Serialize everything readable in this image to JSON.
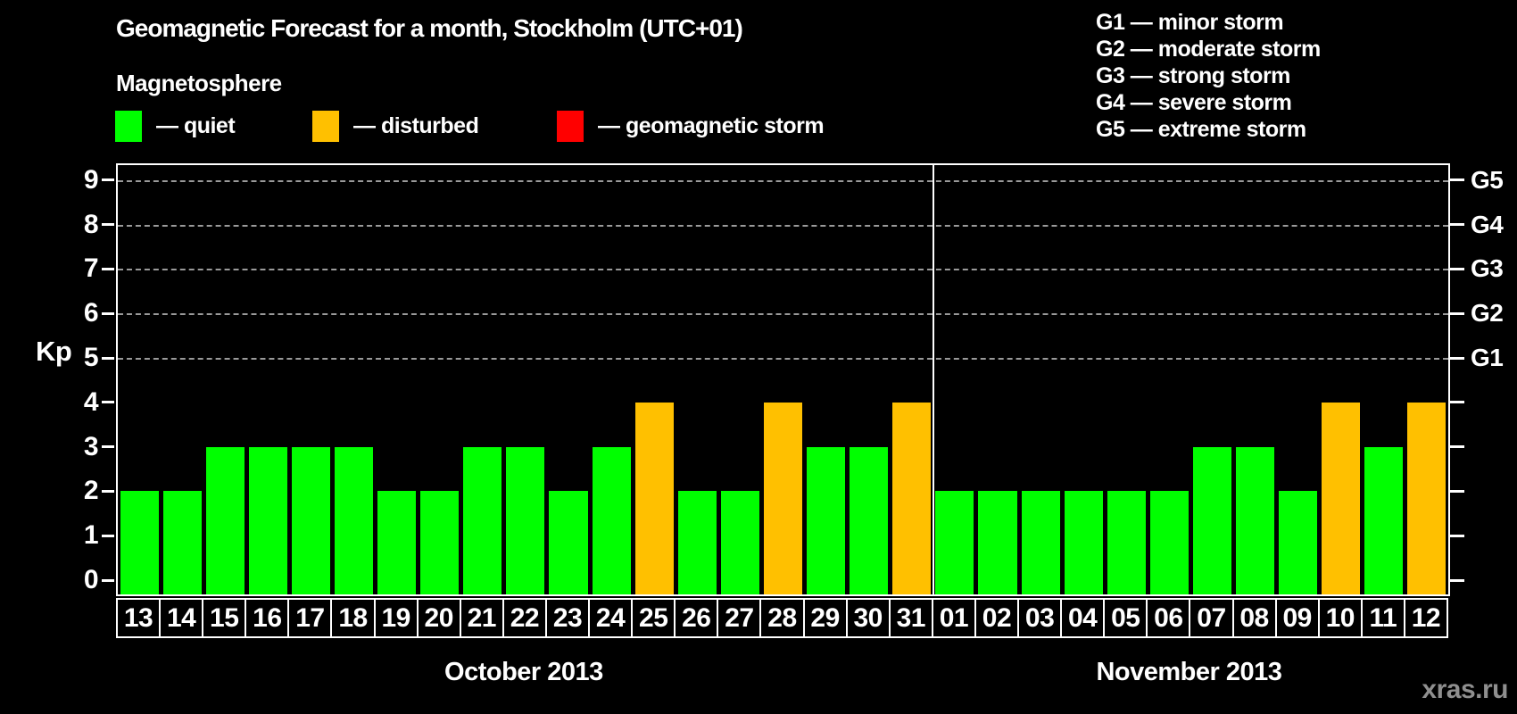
{
  "title": "Geomagnetic Forecast for a month, Stockholm (UTC+01)",
  "subtitle": "Magnetosphere",
  "legend": [
    {
      "name": "quiet",
      "label": "— quiet",
      "color": "#00ff00"
    },
    {
      "name": "disturbed",
      "label": "— disturbed",
      "color": "#ffc000"
    },
    {
      "name": "storm",
      "label": "— geomagnetic storm",
      "color": "#ff0000"
    }
  ],
  "g_scale_legend": [
    "G1 — minor storm",
    "G2 — moderate storm",
    "G3 — strong storm",
    "G4 — severe storm",
    "G5 — extreme storm"
  ],
  "watermark": "xras.ru",
  "chart_data": {
    "type": "bar",
    "title": "Geomagnetic Forecast for a month, Stockholm (UTC+01)",
    "xlabel": "",
    "ylabel": "Kp",
    "ylim": [
      0,
      9
    ],
    "y_ticks": [
      0,
      1,
      2,
      3,
      4,
      5,
      6,
      7,
      8,
      9
    ],
    "gridlines_at_kp": [
      5,
      6,
      7,
      8,
      9
    ],
    "grid": "dashed horizontal at Kp 5-9 only",
    "legend_position": "top",
    "right_axis_labels": [
      {
        "label": "G1",
        "kp": 5
      },
      {
        "label": "G2",
        "kp": 6
      },
      {
        "label": "G3",
        "kp": 7
      },
      {
        "label": "G4",
        "kp": 8
      },
      {
        "label": "G5",
        "kp": 9
      }
    ],
    "status_colors": {
      "quiet": "#00ff00",
      "disturbed": "#ffc000",
      "storm": "#ff0000"
    },
    "months": [
      {
        "label": "October 2013",
        "days": [
          "13",
          "14",
          "15",
          "16",
          "17",
          "18",
          "19",
          "20",
          "21",
          "22",
          "23",
          "24",
          "25",
          "26",
          "27",
          "28",
          "29",
          "30",
          "31"
        ],
        "values": [
          2,
          2,
          3,
          3,
          3,
          3,
          2,
          2,
          3,
          3,
          2,
          3,
          4,
          2,
          2,
          4,
          3,
          3,
          4
        ],
        "status": [
          "quiet",
          "quiet",
          "quiet",
          "quiet",
          "quiet",
          "quiet",
          "quiet",
          "quiet",
          "quiet",
          "quiet",
          "quiet",
          "quiet",
          "disturbed",
          "quiet",
          "quiet",
          "disturbed",
          "quiet",
          "quiet",
          "disturbed"
        ]
      },
      {
        "label": "November 2013",
        "days": [
          "01",
          "02",
          "03",
          "04",
          "05",
          "06",
          "07",
          "08",
          "09",
          "10",
          "11",
          "12"
        ],
        "values": [
          2,
          2,
          2,
          2,
          2,
          2,
          3,
          3,
          2,
          4,
          3,
          4
        ],
        "status": [
          "quiet",
          "quiet",
          "quiet",
          "quiet",
          "quiet",
          "quiet",
          "quiet",
          "quiet",
          "quiet",
          "disturbed",
          "quiet",
          "disturbed"
        ]
      }
    ]
  }
}
